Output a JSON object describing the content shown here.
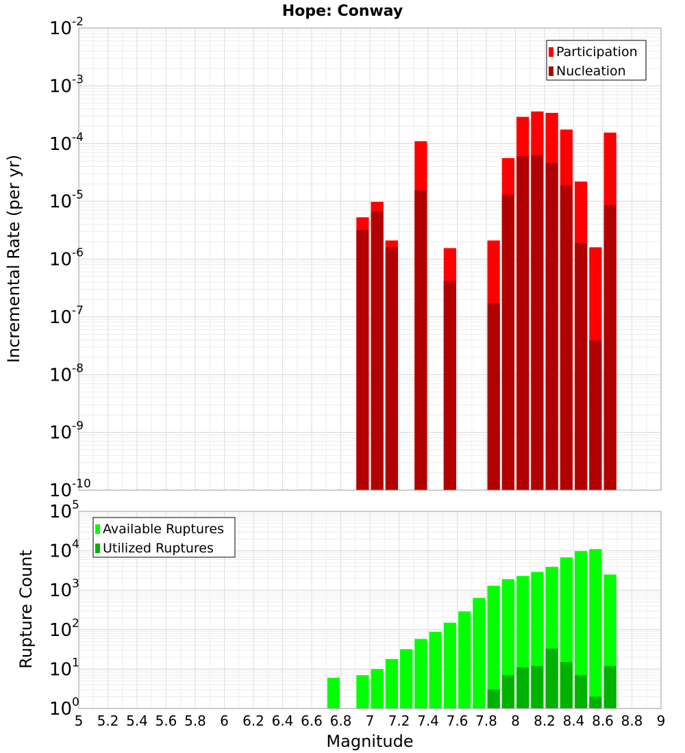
{
  "chart_data": [
    {
      "type": "bar",
      "title": "Hope: Conway",
      "xlabel": "",
      "ylabel": "Incremental Rate (per yr)",
      "yscale": "log",
      "ylim_exp": [
        -10,
        -2
      ],
      "xlim": [
        5,
        9
      ],
      "grid": true,
      "legend_placement": "top-right",
      "colors": {
        "Participation": "#ff0000",
        "Nucleation": "#b20000"
      },
      "series": [
        {
          "name": "Participation",
          "x": [
            6.95,
            7.05,
            7.15,
            7.35,
            7.55,
            7.85,
            7.95,
            8.05,
            8.15,
            8.25,
            8.35,
            8.45,
            8.55,
            8.65
          ],
          "values": [
            5.3e-06,
            9.8e-06,
            2.1e-06,
            0.00011,
            1.55e-06,
            2.1e-06,
            5.6e-05,
            0.00029,
            0.00036,
            0.00034,
            0.000175,
            2.2e-05,
            1.6e-06,
            0.000155
          ]
        },
        {
          "name": "Nucleation",
          "x": [
            6.95,
            7.05,
            7.15,
            7.35,
            7.55,
            7.85,
            7.95,
            8.05,
            8.15,
            8.25,
            8.35,
            8.45,
            8.55,
            8.65
          ],
          "values": [
            3.2e-06,
            6.7e-06,
            1.6e-06,
            1.55e-05,
            4.2e-07,
            1.7e-07,
            1.3e-05,
            6.1e-05,
            6.3e-05,
            4.6e-05,
            1.9e-05,
            1.9e-06,
            3.9e-08,
            8.6e-06
          ]
        }
      ]
    },
    {
      "type": "bar",
      "title": "",
      "xlabel": "Magnitude",
      "ylabel": "Rupture Count",
      "yscale": "log",
      "ylim_exp": [
        0,
        5
      ],
      "xlim": [
        5,
        9
      ],
      "x_ticks": [
        "5",
        "5.2",
        "5.4",
        "5.6",
        "5.8",
        "6",
        "6.2",
        "6.4",
        "6.6",
        "6.8",
        "7",
        "7.2",
        "7.4",
        "7.6",
        "7.8",
        "8",
        "8.2",
        "8.4",
        "8.6",
        "8.8",
        "9"
      ],
      "grid": true,
      "legend_placement": "top-left",
      "colors": {
        "Available Ruptures": "#00ff00",
        "Utilized Ruptures": "#00b200"
      },
      "series": [
        {
          "name": "Available Ruptures",
          "x": [
            6.75,
            6.95,
            7.05,
            7.15,
            7.25,
            7.35,
            7.45,
            7.55,
            7.65,
            7.75,
            7.85,
            7.95,
            8.05,
            8.15,
            8.25,
            8.35,
            8.45,
            8.55,
            8.65
          ],
          "values": [
            6,
            7,
            10,
            18,
            32,
            58,
            88,
            150,
            290,
            640,
            1300,
            1900,
            2300,
            2900,
            3900,
            6800,
            9800,
            11000,
            2500
          ]
        },
        {
          "name": "Utilized Ruptures",
          "x": [
            6.95,
            7.05,
            7.15,
            7.35,
            7.55,
            7.85,
            7.95,
            8.05,
            8.15,
            8.25,
            8.35,
            8.45,
            8.55,
            8.65
          ],
          "values": [
            1,
            1,
            1,
            1,
            1,
            3,
            7,
            11,
            12,
            33,
            15,
            7,
            2,
            12
          ]
        }
      ]
    }
  ]
}
